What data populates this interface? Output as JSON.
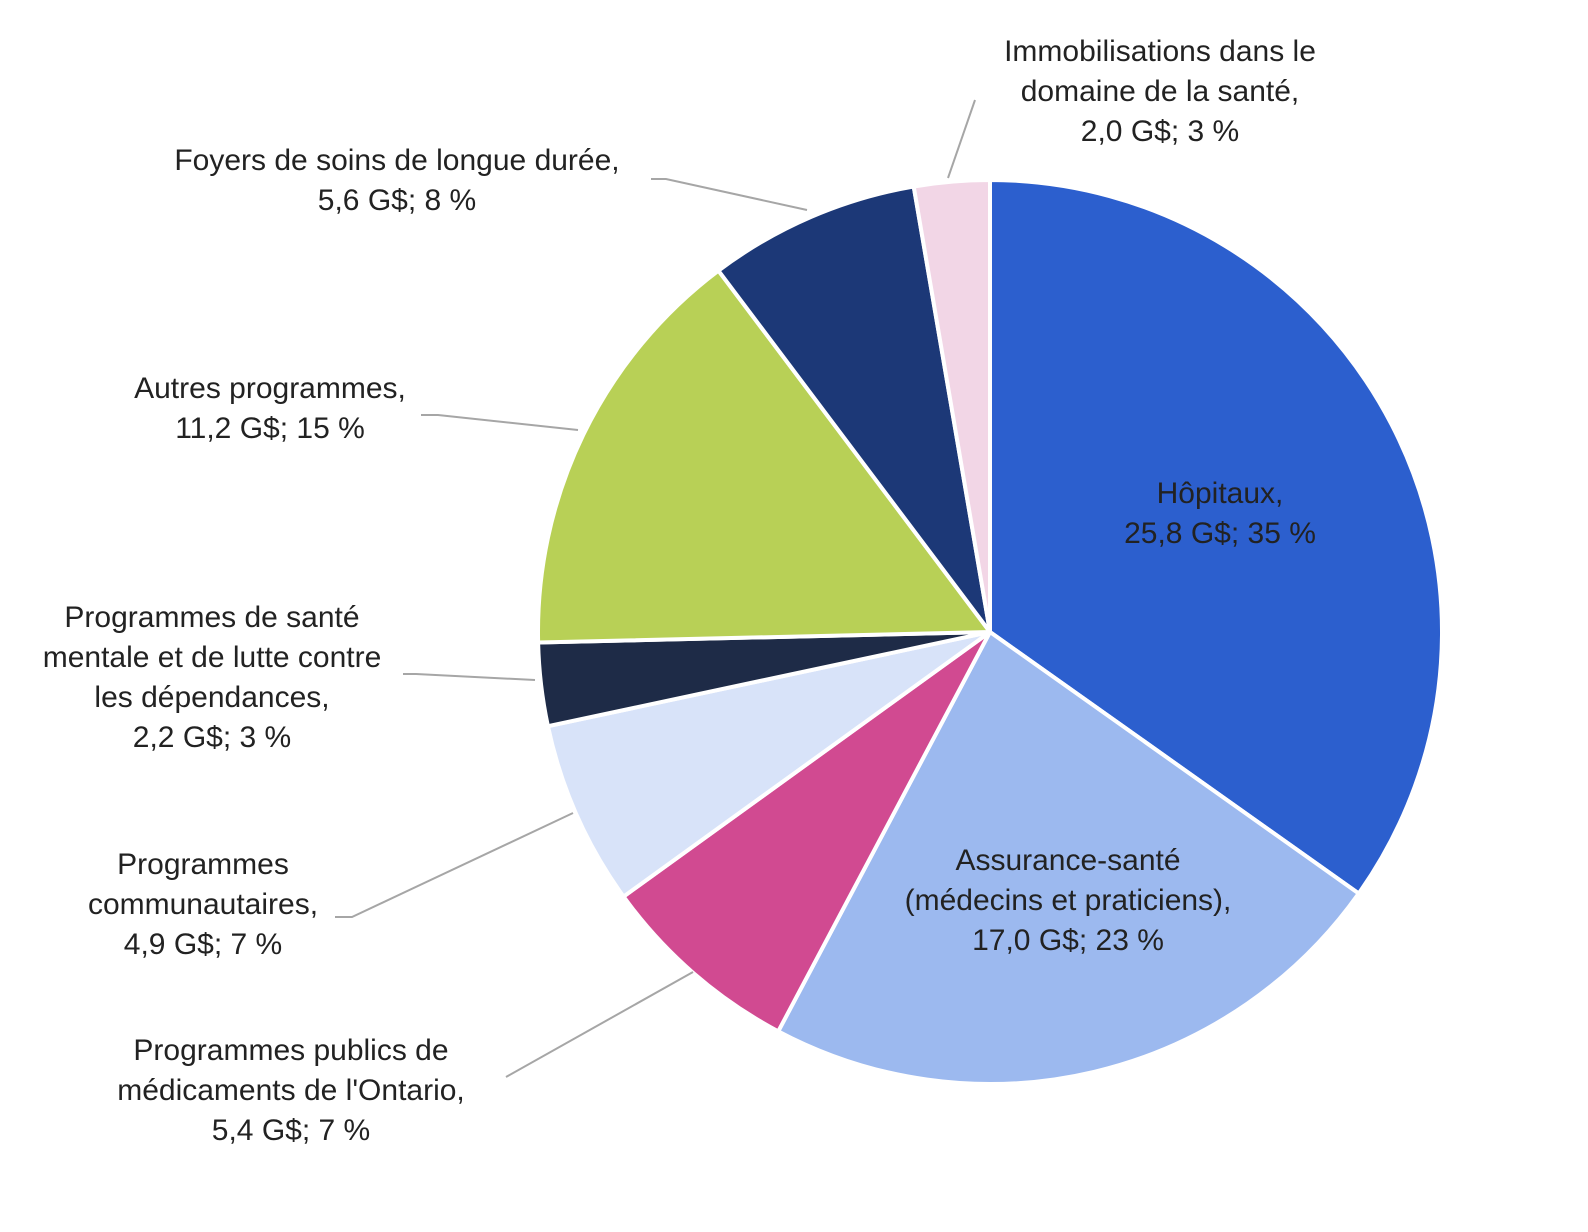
{
  "chart_data": {
    "type": "pie",
    "title": "",
    "start_angle_deg": 0,
    "direction": "clockwise",
    "slices": [
      {
        "name": "Hôpitaux",
        "value": 25.8,
        "percent": 35,
        "color": "#2C5FCE",
        "label_lines": [
          "Hôpitaux,",
          "25,8 G$; 35 %"
        ],
        "label_inside": true,
        "label_color": "#ffffff"
      },
      {
        "name": "Assurance-santé (médecins et praticiens)",
        "value": 17.0,
        "percent": 23,
        "color": "#9CB9EF",
        "label_lines": [
          "Assurance-santé",
          "(médecins et praticiens),",
          "17,0 G$; 23 %"
        ],
        "label_inside": true,
        "label_color": "#222222"
      },
      {
        "name": "Programmes publics de médicaments de l'Ontario",
        "value": 5.4,
        "percent": 7,
        "color": "#D14A91",
        "label_lines": [
          "Programmes publics de",
          "médicaments de l'Ontario,",
          "5,4 G$; 7 %"
        ],
        "label_inside": false
      },
      {
        "name": "Programmes communautaires",
        "value": 4.9,
        "percent": 7,
        "color": "#D8E3F9",
        "label_lines": [
          "Programmes",
          "communautaires,",
          "4,9 G$; 7 %"
        ],
        "label_inside": false
      },
      {
        "name": "Programmes de santé mentale et de lutte contre les dépendances",
        "value": 2.2,
        "percent": 3,
        "color": "#1E2B47",
        "label_lines": [
          "Programmes de santé",
          "mentale et de lutte contre",
          "les dépendances,",
          "2,2 G$; 3 %"
        ],
        "label_inside": false
      },
      {
        "name": "Autres programmes",
        "value": 11.2,
        "percent": 15,
        "color": "#B8D056",
        "label_lines": [
          "Autres programmes,",
          "11,2 G$; 15 %"
        ],
        "label_inside": false
      },
      {
        "name": "Foyers de soins de longue durée",
        "value": 5.6,
        "percent": 8,
        "color": "#1C3877",
        "label_lines": [
          "Foyers de soins de longue durée,",
          "5,6 G$; 8 %"
        ],
        "label_inside": false
      },
      {
        "name": "Immobilisations dans le domaine de la santé",
        "value": 2.0,
        "percent": 3,
        "color": "#F2D6E6",
        "label_lines": [
          "Immobilisations dans le",
          "domaine de la santé,",
          "2,0 G$; 3 %"
        ],
        "label_inside": false
      }
    ]
  }
}
